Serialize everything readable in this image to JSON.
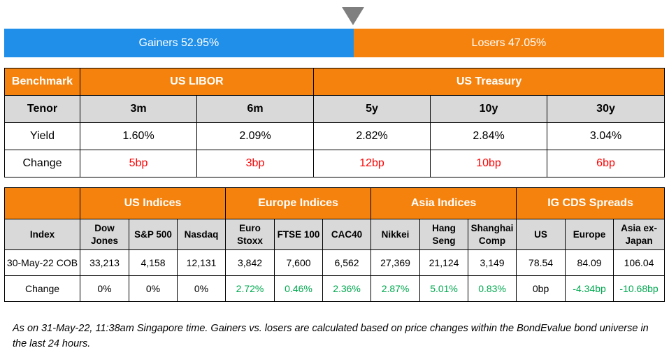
{
  "gainers_losers": {
    "gainers_label": "Gainers 52.95%",
    "losers_label": "Losers 47.05%",
    "gainers_pct": 52.95,
    "losers_pct": 47.05,
    "gainers_color": "#1f8fea",
    "losers_color": "#f5820d"
  },
  "rates_table": {
    "benchmark_label": "Benchmark",
    "group_libor": "US LIBOR",
    "group_treasury": "US Treasury",
    "tenor_label": "Tenor",
    "tenors": [
      "3m",
      "6m",
      "5y",
      "10y",
      "30y"
    ],
    "yield_label": "Yield",
    "yields": [
      "1.60%",
      "2.09%",
      "2.82%",
      "2.84%",
      "3.04%"
    ],
    "change_label": "Change",
    "changes": [
      "5bp",
      "3bp",
      "12bp",
      "10bp",
      "6bp"
    ]
  },
  "indices_table": {
    "groups": [
      "US Indices",
      "Europe Indices",
      "Asia Indices",
      "IG CDS Spreads"
    ],
    "index_label": "Index",
    "columns": [
      "Dow Jones",
      "S&P 500",
      "Nasdaq",
      "Euro Stoxx",
      "FTSE 100",
      "CAC40",
      "Nikkei",
      "Hang Seng",
      "Shanghai Comp",
      "US",
      "Europe",
      "Asia ex-Japan"
    ],
    "row_date_label": "30-May-22 COB",
    "values": [
      "33,213",
      "4,158",
      "12,131",
      "3,842",
      "7,600",
      "6,562",
      "27,369",
      "21,124",
      "3,149",
      "78.54",
      "84.09",
      "106.04"
    ],
    "change_label": "Change",
    "changes": [
      "0%",
      "0%",
      "0%",
      "2.72%",
      "0.46%",
      "2.36%",
      "2.87%",
      "5.01%",
      "0.83%",
      "0bp",
      "-4.34bp",
      "-10.68bp"
    ]
  },
  "footnote": "As on 31-May-22, 11:38am Singapore time. Gainers vs. losers are calculated based on price changes within the BondEvalue bond universe in the last 24 hours."
}
